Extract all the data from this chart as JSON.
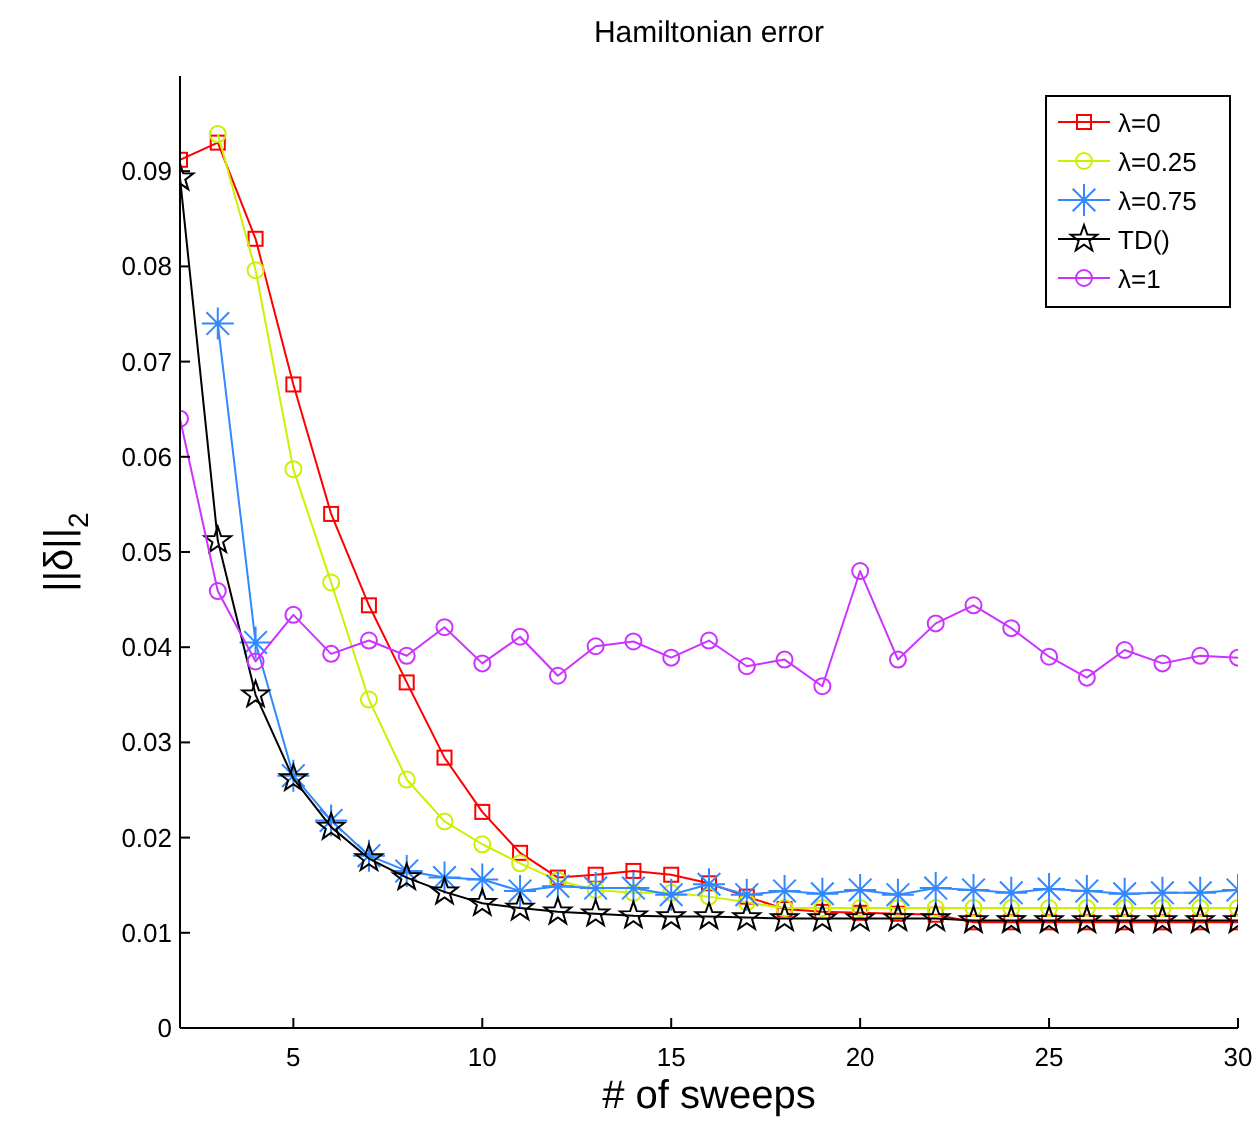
{
  "chart_data": {
    "type": "line",
    "title": "Hamiltonian error",
    "xlabel": "# of sweeps",
    "ylabel": "||δ||$_{2}$",
    "x": [
      2,
      3,
      4,
      5,
      6,
      7,
      8,
      9,
      10,
      11,
      12,
      13,
      14,
      15,
      16,
      17,
      18,
      19,
      20,
      21,
      22,
      23,
      24,
      25,
      26,
      27,
      28,
      29,
      30
    ],
    "xlim": [
      2,
      30
    ],
    "xticks": [
      5,
      10,
      15,
      20,
      25,
      30
    ],
    "ylim": [
      0,
      0.1
    ],
    "yticks": [
      0,
      0.01,
      0.02,
      0.03,
      0.04,
      0.05,
      0.06,
      0.07,
      0.08,
      0.09
    ],
    "grid": false,
    "legend": "top right",
    "line_style": "solid",
    "series": [
      {
        "name": "λ=0",
        "color": "#ff0000",
        "marker": "square",
        "values": [
          0.0912,
          0.093,
          0.0829,
          0.0676,
          0.054,
          0.0444,
          0.0363,
          0.0284,
          0.0227,
          0.0184,
          0.0158,
          0.0161,
          0.0165,
          0.0161,
          0.0152,
          0.0138,
          0.0125,
          0.0122,
          0.0121,
          0.012,
          0.0119,
          0.0111,
          0.0111,
          0.0111,
          0.0111,
          0.0111,
          0.0111,
          0.0111,
          0.0111
        ]
      },
      {
        "name": "λ=0.25",
        "color": "#ccf000",
        "marker": "circle",
        "values": [
          null,
          0.0939,
          0.0796,
          0.0587,
          0.0468,
          0.0345,
          0.0261,
          0.0217,
          0.0193,
          0.0173,
          0.0155,
          0.0145,
          0.0142,
          0.0142,
          0.0138,
          0.0132,
          0.0126,
          0.0126,
          0.0126,
          0.0126,
          0.0126,
          0.0126,
          0.0126,
          0.0126,
          0.0126,
          0.0126,
          0.0126,
          0.0126,
          0.0126
        ]
      },
      {
        "name": "λ=0.75",
        "color": "#3388ff",
        "marker": "cross",
        "values": [
          null,
          0.074,
          0.0405,
          0.0265,
          0.0218,
          0.0181,
          0.0165,
          0.0158,
          0.0156,
          0.0144,
          0.0149,
          0.0147,
          0.0147,
          0.014,
          0.0151,
          0.014,
          0.0144,
          0.0141,
          0.0145,
          0.014,
          0.0147,
          0.0145,
          0.0142,
          0.0146,
          0.0144,
          0.0141,
          0.0142,
          0.0142,
          0.0145
        ]
      },
      {
        "name": "TD()",
        "color": "#000000",
        "marker": "star",
        "values": [
          0.0893,
          0.0512,
          0.035,
          0.0262,
          0.0211,
          0.0178,
          0.0158,
          0.0143,
          0.0131,
          0.0126,
          0.0122,
          0.012,
          0.0118,
          0.0117,
          0.0117,
          0.0116,
          0.0115,
          0.0115,
          0.0115,
          0.0115,
          0.0115,
          0.0113,
          0.0113,
          0.0113,
          0.0113,
          0.0113,
          0.0113,
          0.0113,
          0.0113
        ]
      },
      {
        "name": "λ=1",
        "color": "#cc33ff",
        "marker": "circle",
        "values": [
          0.064,
          0.0459,
          0.0385,
          0.0434,
          0.0393,
          0.0407,
          0.0391,
          0.0421,
          0.0383,
          0.0411,
          0.037,
          0.0401,
          0.0406,
          0.0389,
          0.0407,
          0.038,
          0.0387,
          0.0359,
          0.048,
          0.0387,
          0.0425,
          0.0444,
          0.042,
          0.039,
          0.0368,
          0.0397,
          0.0383,
          0.0391,
          0.0389
        ]
      }
    ]
  }
}
